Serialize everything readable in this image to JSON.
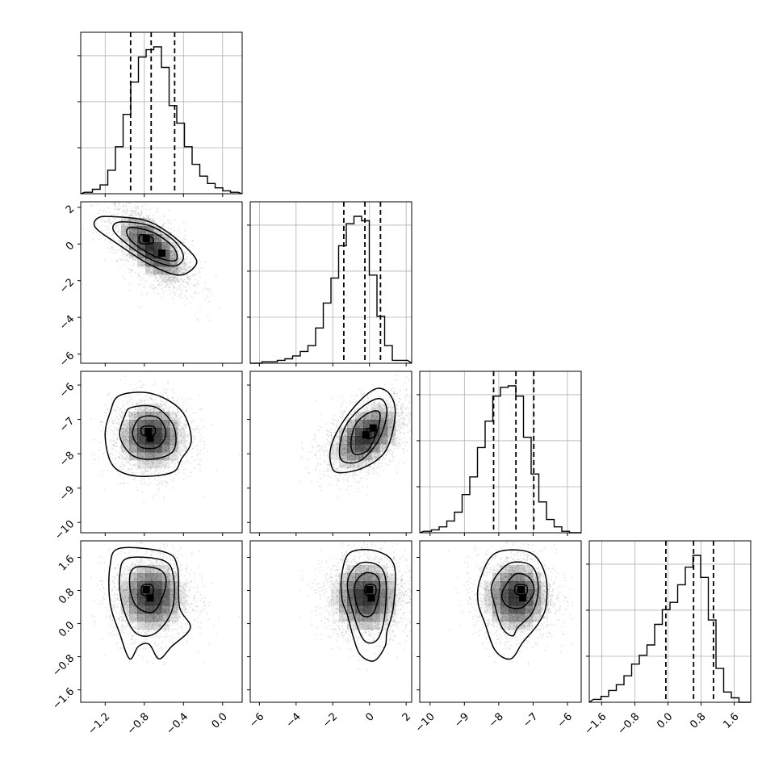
{
  "chart_data": {
    "type": "corner",
    "title": "",
    "grid": true,
    "colors": {
      "line": "#000000",
      "grid": "#b0b0b0",
      "scatter": "#9a9a9a",
      "density": "#000000"
    },
    "variables": [
      {
        "name": "",
        "range": [
          -1.45,
          0.2
        ],
        "ticks": [
          -1.2,
          -0.8,
          -0.4,
          0.0
        ],
        "tick_labels": [
          "−1.2",
          "−0.8",
          "−0.4",
          "0.0"
        ],
        "mean": -0.73,
        "sd": 0.2,
        "quantiles": [
          -0.94,
          -0.73,
          -0.49
        ],
        "hist": [
          0.01,
          0.03,
          0.06,
          0.16,
          0.32,
          0.54,
          0.76,
          0.93,
          0.98,
          1.0,
          0.86,
          0.6,
          0.48,
          0.32,
          0.2,
          0.12,
          0.07,
          0.04,
          0.02,
          0.01
        ]
      },
      {
        "name": "",
        "range": [
          -6.5,
          2.3
        ],
        "ticks": [
          -6,
          -4,
          -2,
          0,
          2
        ],
        "tick_labels": [
          "−6",
          "−4",
          "−2",
          "0",
          "2"
        ],
        "mean": -0.2,
        "sd": 1.1,
        "quantiles": [
          -1.4,
          -0.25,
          0.6
        ],
        "hist": [
          0.0,
          0.01,
          0.01,
          0.02,
          0.03,
          0.05,
          0.08,
          0.12,
          0.24,
          0.41,
          0.58,
          0.8,
          0.95,
          1.0,
          0.97,
          0.6,
          0.32,
          0.12,
          0.02,
          0.02
        ]
      },
      {
        "name": "",
        "range": [
          -10.3,
          -5.6
        ],
        "ticks": [
          -10,
          -9,
          -8,
          -7,
          -6
        ],
        "tick_labels": [
          "−10",
          "−9",
          "−8",
          "−7",
          "−6"
        ],
        "mean": -7.5,
        "sd": 0.55,
        "quantiles": [
          -8.15,
          -7.5,
          -6.98
        ],
        "hist": [
          0.01,
          0.02,
          0.04,
          0.08,
          0.14,
          0.26,
          0.38,
          0.58,
          0.76,
          0.93,
          0.99,
          1.0,
          0.93,
          0.65,
          0.4,
          0.21,
          0.09,
          0.04,
          0.01,
          0.0
        ]
      },
      {
        "name": "",
        "range": [
          -1.9,
          2.0
        ],
        "ticks": [
          -1.6,
          -0.8,
          0.0,
          0.8,
          1.6
        ],
        "tick_labels": [
          "−1.6",
          "−0.8",
          "0.0",
          "0.8",
          "1.6"
        ],
        "mean": 0.65,
        "sd": 0.5,
        "quantiles": [
          -0.05,
          0.62,
          1.1
        ],
        "hist": [
          0.02,
          0.04,
          0.08,
          0.12,
          0.18,
          0.26,
          0.32,
          0.39,
          0.53,
          0.63,
          0.68,
          0.8,
          0.92,
          1.0,
          0.85,
          0.56,
          0.23,
          0.07,
          0.03,
          0.0
        ]
      }
    ],
    "correlations": [
      [
        0,
        1,
        -0.62
      ],
      [
        0,
        2,
        0.0
      ],
      [
        1,
        2,
        0.45
      ],
      [
        0,
        3,
        0.0
      ],
      [
        1,
        3,
        0.0
      ],
      [
        2,
        3,
        0.0
      ]
    ],
    "panels_2d": [
      {
        "x": 0,
        "y": 1,
        "modes": [
          [
            -0.78,
            0.3
          ],
          [
            -0.62,
            -0.5
          ]
        ],
        "contours": [
          [
            [
              -1.15,
              1.5
            ],
            [
              -0.8,
              1.3
            ],
            [
              -0.55,
              0.6
            ],
            [
              -0.3,
              -0.6
            ],
            [
              -0.28,
              -1.2
            ],
            [
              -0.45,
              -1.7
            ],
            [
              -0.75,
              -1.1
            ],
            [
              -1.1,
              0.1
            ],
            [
              -1.3,
              0.9
            ],
            [
              -1.28,
              1.4
            ]
          ],
          [
            [
              -1.05,
              1.2
            ],
            [
              -0.75,
              1.0
            ],
            [
              -0.5,
              0.2
            ],
            [
              -0.4,
              -0.7
            ],
            [
              -0.5,
              -1.2
            ],
            [
              -0.75,
              -0.8
            ],
            [
              -1.0,
              0.1
            ],
            [
              -1.12,
              0.8
            ]
          ],
          [
            [
              -0.93,
              0.9
            ],
            [
              -0.7,
              0.6
            ],
            [
              -0.5,
              -0.2
            ],
            [
              -0.48,
              -0.9
            ],
            [
              -0.68,
              -0.7
            ],
            [
              -0.9,
              0.0
            ],
            [
              -0.98,
              0.6
            ]
          ],
          [
            [
              -0.84,
              0.5
            ],
            [
              -0.72,
              0.35
            ],
            [
              -0.72,
              0.05
            ],
            [
              -0.84,
              0.05
            ]
          ]
        ]
      },
      {
        "x": 0,
        "y": 2,
        "modes": [
          [
            -0.76,
            -7.35
          ],
          [
            -0.74,
            -7.55
          ]
        ],
        "contours": [
          [
            [
              -1.05,
              -6.3
            ],
            [
              -0.72,
              -6.25
            ],
            [
              -0.42,
              -6.75
            ],
            [
              -0.32,
              -7.6
            ],
            [
              -0.42,
              -8.15
            ],
            [
              -0.52,
              -8.55
            ],
            [
              -0.88,
              -8.65
            ],
            [
              -1.12,
              -8.35
            ],
            [
              -1.2,
              -7.5
            ],
            [
              -1.15,
              -6.8
            ]
          ],
          [
            [
              -0.93,
              -6.65
            ],
            [
              -0.68,
              -6.65
            ],
            [
              -0.5,
              -7.2
            ],
            [
              -0.5,
              -7.9
            ],
            [
              -0.7,
              -8.15
            ],
            [
              -0.92,
              -8.05
            ],
            [
              -1.05,
              -7.5
            ],
            [
              -1.0,
              -6.9
            ]
          ],
          [
            [
              -0.84,
              -6.95
            ],
            [
              -0.66,
              -6.95
            ],
            [
              -0.58,
              -7.4
            ],
            [
              -0.66,
              -7.8
            ],
            [
              -0.84,
              -7.8
            ],
            [
              -0.92,
              -7.4
            ]
          ],
          [
            [
              -0.82,
              -7.22
            ],
            [
              -0.7,
              -7.22
            ],
            [
              -0.7,
              -7.45
            ],
            [
              -0.82,
              -7.45
            ]
          ]
        ]
      },
      {
        "x": 1,
        "y": 2,
        "modes": [
          [
            -0.2,
            -7.45
          ],
          [
            0.2,
            -7.25
          ]
        ],
        "contours": [
          [
            [
              -2.1,
              -7.8
            ],
            [
              -2.1,
              -8.3
            ],
            [
              -1.7,
              -8.55
            ],
            [
              -0.3,
              -8.4
            ],
            [
              0.9,
              -7.9
            ],
            [
              1.4,
              -6.9
            ],
            [
              1.15,
              -6.3
            ],
            [
              0.4,
              -6.1
            ],
            [
              -0.6,
              -6.5
            ],
            [
              -1.6,
              -7.2
            ]
          ],
          [
            [
              -1.6,
              -7.7
            ],
            [
              -1.5,
              -8.2
            ],
            [
              -0.5,
              -8.2
            ],
            [
              0.5,
              -7.6
            ],
            [
              0.95,
              -6.8
            ],
            [
              0.6,
              -6.4
            ],
            [
              -0.3,
              -6.6
            ],
            [
              -1.2,
              -7.1
            ]
          ],
          [
            [
              -1.0,
              -7.6
            ],
            [
              -0.85,
              -8.0
            ],
            [
              -0.1,
              -7.9
            ],
            [
              0.45,
              -7.3
            ],
            [
              0.55,
              -6.8
            ],
            [
              0.0,
              -6.8
            ],
            [
              -0.7,
              -7.1
            ]
          ],
          [
            [
              -0.15,
              -7.3
            ],
            [
              0.25,
              -7.25
            ],
            [
              0.25,
              -7.5
            ],
            [
              -0.15,
              -7.55
            ]
          ]
        ]
      },
      {
        "x": 0,
        "y": 3,
        "modes": [
          [
            -0.78,
            0.82
          ],
          [
            -0.74,
            0.62
          ]
        ],
        "contours": [
          [
            [
              -1.05,
              1.82
            ],
            [
              -0.58,
              1.72
            ],
            [
              -0.46,
              1.35
            ],
            [
              -0.44,
              0.4
            ],
            [
              -0.33,
              -0.1
            ],
            [
              -0.52,
              -0.55
            ],
            [
              -0.65,
              -0.85
            ],
            [
              -0.75,
              -0.5
            ],
            [
              -0.86,
              -0.55
            ],
            [
              -0.95,
              -0.85
            ],
            [
              -1.05,
              -0.25
            ],
            [
              -1.15,
              0.5
            ],
            [
              -1.15,
              1.4
            ]
          ],
          [
            [
              -0.97,
              1.58
            ],
            [
              -0.6,
              1.52
            ],
            [
              -0.5,
              1.1
            ],
            [
              -0.52,
              0.3
            ],
            [
              -0.7,
              -0.25
            ],
            [
              -0.9,
              -0.2
            ],
            [
              -1.03,
              0.5
            ],
            [
              -1.05,
              1.2
            ]
          ],
          [
            [
              -0.9,
              1.35
            ],
            [
              -0.64,
              1.3
            ],
            [
              -0.58,
              0.92
            ],
            [
              -0.7,
              0.3
            ],
            [
              -0.88,
              0.42
            ],
            [
              -0.95,
              0.95
            ]
          ],
          [
            [
              -0.82,
              0.92
            ],
            [
              -0.72,
              0.92
            ],
            [
              -0.72,
              0.7
            ],
            [
              -0.82,
              0.7
            ]
          ]
        ]
      },
      {
        "x": 1,
        "y": 3,
        "modes": [
          [
            0.0,
            0.82
          ],
          [
            0.1,
            0.62
          ]
        ],
        "contours": [
          [
            [
              -1.5,
              1.2
            ],
            [
              -1.05,
              1.72
            ],
            [
              0.4,
              1.75
            ],
            [
              1.35,
              1.4
            ],
            [
              1.3,
              0.4
            ],
            [
              0.95,
              -0.2
            ],
            [
              0.85,
              -0.55
            ],
            [
              0.25,
              -0.9
            ],
            [
              -0.5,
              -0.75
            ],
            [
              -0.9,
              -0.3
            ],
            [
              -1.2,
              0.2
            ],
            [
              -1.5,
              0.6
            ]
          ],
          [
            [
              -1.2,
              1.0
            ],
            [
              -0.55,
              1.45
            ],
            [
              0.5,
              1.4
            ],
            [
              0.9,
              1.0
            ],
            [
              0.8,
              0.1
            ],
            [
              0.4,
              -0.4
            ],
            [
              -0.3,
              -0.4
            ],
            [
              -0.85,
              0.2
            ]
          ],
          [
            [
              -0.8,
              0.95
            ],
            [
              -0.25,
              1.22
            ],
            [
              0.4,
              1.15
            ],
            [
              0.55,
              0.8
            ],
            [
              0.2,
              0.25
            ],
            [
              -0.4,
              0.2
            ],
            [
              -0.75,
              0.55
            ]
          ],
          [
            [
              -0.2,
              0.92
            ],
            [
              0.3,
              0.92
            ],
            [
              0.3,
              0.7
            ],
            [
              -0.2,
              0.7
            ]
          ]
        ]
      },
      {
        "x": 2,
        "y": 3,
        "modes": [
          [
            -7.35,
            0.82
          ],
          [
            -7.3,
            0.62
          ]
        ],
        "contours": [
          [
            [
              -8.55,
              1.05
            ],
            [
              -8.1,
              1.7
            ],
            [
              -7.1,
              1.72
            ],
            [
              -6.65,
              1.2
            ],
            [
              -6.62,
              0.45
            ],
            [
              -6.85,
              0.0
            ],
            [
              -7.3,
              -0.45
            ],
            [
              -7.65,
              -0.85
            ],
            [
              -8.1,
              -0.65
            ],
            [
              -8.4,
              0.0
            ],
            [
              -8.6,
              0.5
            ]
          ],
          [
            [
              -8.2,
              0.95
            ],
            [
              -7.7,
              1.45
            ],
            [
              -7.05,
              1.4
            ],
            [
              -6.85,
              0.9
            ],
            [
              -7.0,
              0.3
            ],
            [
              -7.45,
              -0.1
            ],
            [
              -7.6,
              -0.3
            ],
            [
              -7.9,
              -0.1
            ],
            [
              -8.1,
              0.4
            ]
          ],
          [
            [
              -7.85,
              0.85
            ],
            [
              -7.5,
              1.2
            ],
            [
              -7.1,
              1.1
            ],
            [
              -6.98,
              0.75
            ],
            [
              -7.3,
              0.4
            ],
            [
              -7.7,
              0.4
            ],
            [
              -7.9,
              0.6
            ]
          ],
          [
            [
              -7.5,
              0.92
            ],
            [
              -7.2,
              0.92
            ],
            [
              -7.2,
              0.72
            ],
            [
              -7.5,
              0.72
            ]
          ]
        ]
      }
    ]
  }
}
